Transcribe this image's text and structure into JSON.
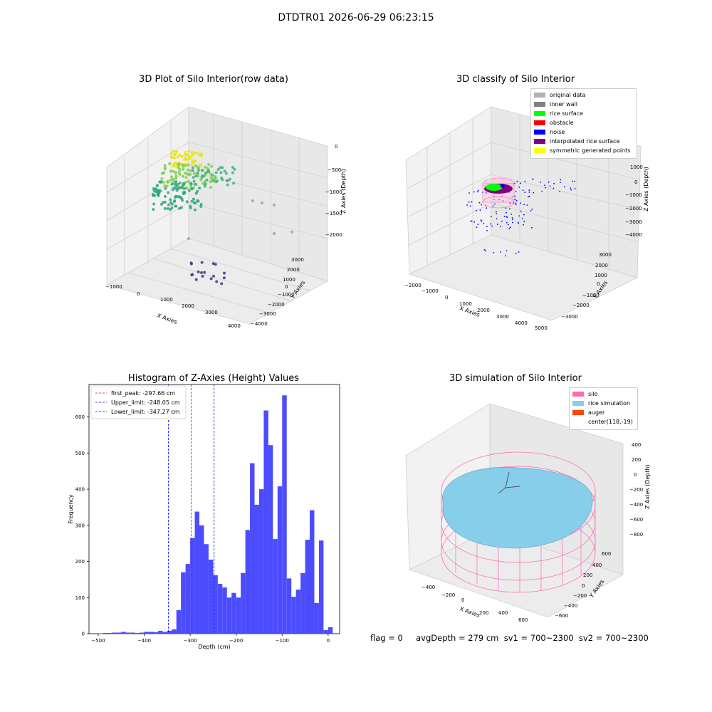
{
  "suptitle": "DTDTR01 2026-06-29 06:23:15",
  "footer": "flag = 0     avgDepth = 279 cm  sv1 = 700~2300  sv2 = 700~2300",
  "plots": {
    "raw": {
      "title": "3D Plot of Silo Interior(row data)",
      "xlabel": "X Axies",
      "ylabel": "Y Axies",
      "zlabel": "Z Axies (Depth)",
      "xticks": [
        "−1000",
        "0",
        "1000",
        "2000",
        "3000",
        "4000"
      ],
      "yticks": [
        "3000",
        "2000",
        "1000",
        "0",
        "−1000",
        "−2000",
        "−3000",
        "−4000"
      ],
      "zticks": [
        "0",
        "−500",
        "−1000",
        "−1500",
        "−2000"
      ]
    },
    "classify": {
      "title": "3D classify of Silo Interior",
      "xlabel": "X Axies",
      "ylabel": "Y Axies",
      "zlabel": "Z Axies (Depth)",
      "xticks": [
        "−2000",
        "−1000",
        "0",
        "1000",
        "2000",
        "3000",
        "4000",
        "5000"
      ],
      "yticks": [
        "3000",
        "2000",
        "1000",
        "0",
        "−1000",
        "−2000",
        "−3000"
      ],
      "zticks": [
        "1000",
        "0",
        "−1000",
        "−2000",
        "−3000",
        "−4000"
      ],
      "legend": [
        {
          "label": "original data",
          "color": "#b0b0b0"
        },
        {
          "label": "inner wall",
          "color": "#808080"
        },
        {
          "label": "rice surface",
          "color": "#00ff00"
        },
        {
          "label": "obstacle",
          "color": "#ff0000"
        },
        {
          "label": "noise",
          "color": "#0000ff"
        },
        {
          "label": "interpolated rice surface",
          "color": "#800080"
        },
        {
          "label": "symmetric generated points",
          "color": "#ffff00"
        }
      ]
    },
    "simulation": {
      "title": "3D simulation of Silo Interior",
      "xlabel": "X Axies",
      "ylabel": "Y Axies",
      "zlabel": "Z Axies (Depth)",
      "xticks": [
        "−400",
        "−200",
        "0",
        "200",
        "400",
        "600"
      ],
      "yticks": [
        "600",
        "400",
        "200",
        "0",
        "−200",
        "−400",
        "−600"
      ],
      "zticks": [
        "400",
        "200",
        "0",
        "−200",
        "−400",
        "−600",
        "−800"
      ],
      "legend": [
        {
          "label": "silo",
          "color": "#ff69b4"
        },
        {
          "label": "rice simulation",
          "color": "#87ceeb"
        },
        {
          "label": "auger",
          "color": "#ff4500"
        },
        {
          "label": "center(118,-19)",
          "color": ""
        }
      ]
    }
  },
  "chart_data": {
    "type": "bar",
    "title": "Histogram of Z-Axies (Height) Values",
    "xlabel": "Depth (cm)",
    "ylabel": "Frequency",
    "xlim": [
      -520,
      25
    ],
    "ylim": [
      0,
      690
    ],
    "xticks": [
      -500,
      -400,
      -300,
      -200,
      -100,
      0
    ],
    "yticks": [
      0,
      100,
      200,
      300,
      400,
      500,
      600
    ],
    "bin_width": 10,
    "bins_start": [
      -500,
      -490,
      -480,
      -470,
      -460,
      -450,
      -440,
      -430,
      -420,
      -410,
      -400,
      -390,
      -380,
      -370,
      -360,
      -350,
      -340,
      -330,
      -320,
      -310,
      -300,
      -290,
      -280,
      -270,
      -260,
      -250,
      -240,
      -230,
      -220,
      -210,
      -200,
      -190,
      -180,
      -170,
      -160,
      -150,
      -140,
      -130,
      -120,
      -110,
      -100,
      -90,
      -80,
      -70,
      -60,
      -50,
      -40,
      -30,
      -20,
      -10,
      0
    ],
    "values": [
      1,
      2,
      2,
      3,
      3,
      5,
      3,
      3,
      2,
      3,
      5,
      5,
      4,
      8,
      5,
      8,
      12,
      65,
      170,
      193,
      265,
      338,
      300,
      248,
      205,
      162,
      138,
      128,
      100,
      113,
      100,
      168,
      287,
      472,
      357,
      400,
      618,
      522,
      262,
      408,
      660,
      153,
      102,
      122,
      168,
      260,
      342,
      85,
      258,
      10,
      18
    ],
    "vlines": [
      {
        "x": -297.66,
        "label": "first_peak: -297.66 cm",
        "color": "#ff0000"
      },
      {
        "x": -248.05,
        "label": "Upper_limit: -248.05 cm",
        "color": "#0000ff"
      },
      {
        "x": -347.27,
        "label": "Lower_limit: -347.27 cm",
        "color": "#0000ff"
      }
    ],
    "bar_color": "#4c4cff"
  }
}
